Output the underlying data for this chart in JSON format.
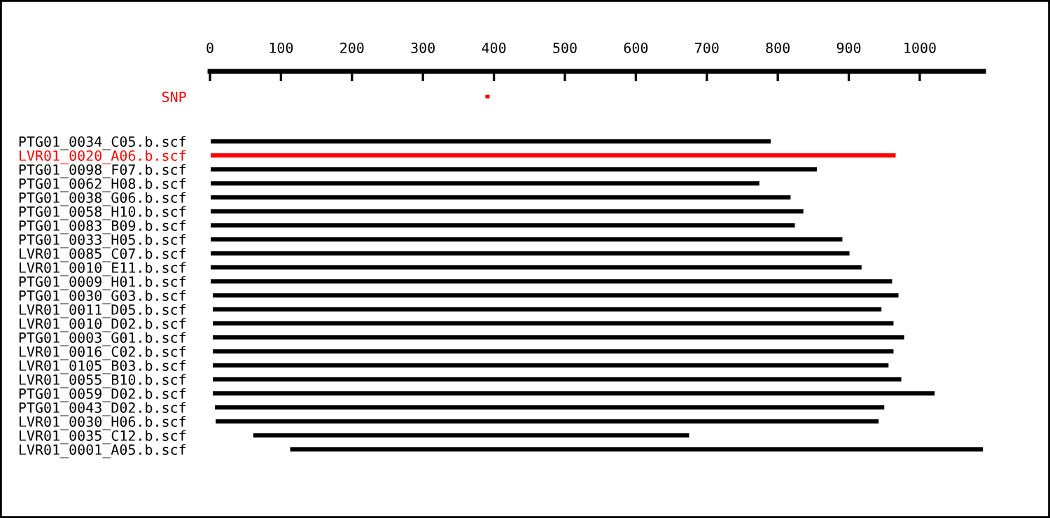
{
  "chart_data": [
    {
      "type": "bar",
      "categories": [
        "SNP"
      ],
      "orientation": "horizontal",
      "base": [
        388
      ],
      "values": [
        6
      ],
      "colors": [
        "#ff0000"
      ],
      "xlim": [
        0,
        1090
      ],
      "xticks": [
        0,
        100,
        200,
        300,
        400,
        500,
        600,
        700,
        800,
        900,
        1000
      ]
    },
    {
      "type": "bar",
      "orientation": "horizontal",
      "tick_labels": "y",
      "xlim": [
        0,
        1090
      ],
      "categories": [
        "PTG01_0034_C05.b.scf",
        "LVR01_0020_A06.b.scf",
        "PTG01_0098_F07.b.scf",
        "PTG01_0062_H08.b.scf",
        "PTG01_0038_G06.b.scf",
        "PTG01_0058_H10.b.scf",
        "PTG01_0083_B09.b.scf",
        "PTG01_0033_H05.b.scf",
        "LVR01_0085_C07.b.scf",
        "LVR01_0010_E11.b.scf",
        "PTG01_0009_H01.b.scf",
        "PTG01_0030_G03.b.scf",
        "LVR01_0011_D05.b.scf",
        "LVR01_0010_D02.b.scf",
        "PTG01_0003_G01.b.scf",
        "LVR01_0016_C02.b.scf",
        "LVR01_0105_B03.b.scf",
        "LVR01_0055_B10.b.scf",
        "PTG01_0059_D02.b.scf",
        "PTG01_0043_D02.b.scf",
        "LVR01_0030_H06.b.scf",
        "LVR01_0035_C12.b.scf",
        "LVR01_0001_A05.b.scf"
      ],
      "base": [
        1,
        1,
        1,
        1,
        1,
        1,
        1,
        1,
        1,
        1,
        1,
        4,
        4,
        4,
        4,
        4,
        4,
        4,
        4,
        7,
        8,
        61,
        113
      ],
      "values": [
        789,
        965,
        854,
        773,
        817,
        835,
        823,
        890,
        900,
        917,
        960,
        966,
        942,
        959,
        974,
        959,
        952,
        970,
        1017,
        943,
        934,
        614,
        976
      ],
      "colors": [
        "#000000",
        "#ff0000",
        "#000000",
        "#000000",
        "#000000",
        "#000000",
        "#000000",
        "#000000",
        "#000000",
        "#000000",
        "#000000",
        "#000000",
        "#000000",
        "#000000",
        "#000000",
        "#000000",
        "#000000",
        "#000000",
        "#000000",
        "#000000",
        "#000000",
        "#000000",
        "#000000"
      ]
    }
  ]
}
